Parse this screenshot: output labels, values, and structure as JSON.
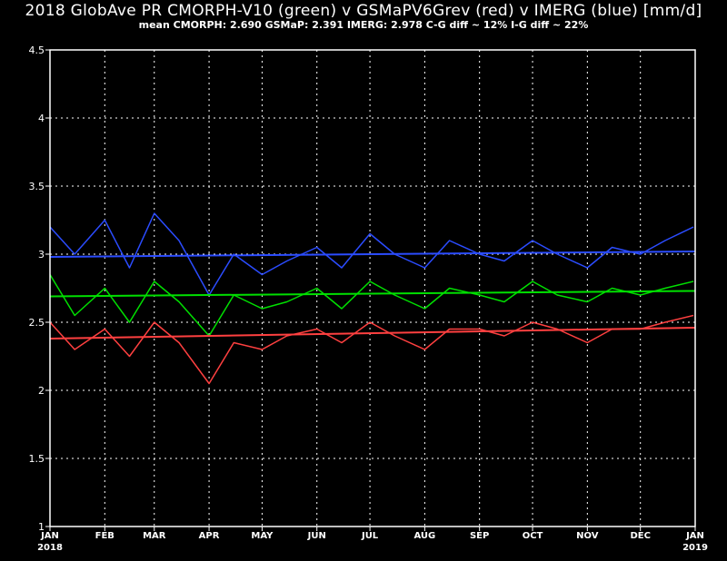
{
  "chart_data": {
    "type": "line",
    "title": "2018 GlobAve PR CMORPH-V10 (green) v GSMaPV6Grev (red) v IMERG (blue) [mm/d]",
    "subtitle": "mean CMORPH: 2.690 GSMaP: 2.391 IMERG: 2.978 C-G diff ~ 12% I-G diff ~ 22%",
    "ylim": [
      1,
      4.5
    ],
    "yticks": [
      "1",
      "1.5",
      "2",
      "2.5",
      "3",
      "3.5",
      "4",
      "4.5"
    ],
    "xlim": [
      "2018-01-01",
      "2019-01-01"
    ],
    "xticks": [
      {
        "date": "2018-01-01",
        "label": "JAN",
        "year": "2018"
      },
      {
        "date": "2018-02-01",
        "label": "FEB"
      },
      {
        "date": "2018-03-01",
        "label": "MAR"
      },
      {
        "date": "2018-04-01",
        "label": "APR"
      },
      {
        "date": "2018-05-01",
        "label": "MAY"
      },
      {
        "date": "2018-06-01",
        "label": "JUN"
      },
      {
        "date": "2018-07-01",
        "label": "JUL"
      },
      {
        "date": "2018-08-01",
        "label": "AUG"
      },
      {
        "date": "2018-09-01",
        "label": "SEP"
      },
      {
        "date": "2018-10-01",
        "label": "OCT"
      },
      {
        "date": "2018-11-01",
        "label": "NOV"
      },
      {
        "date": "2018-12-01",
        "label": "DEC"
      },
      {
        "date": "2019-01-01",
        "label": "JAN",
        "year": "2019"
      }
    ],
    "grid": true,
    "series": [
      {
        "color": "#2b4cff",
        "x": [
          "2018-01-01",
          "2018-01-15",
          "2018-02-01",
          "2018-02-15",
          "2018-03-01",
          "2018-03-15",
          "2018-04-01",
          "2018-04-15",
          "2018-05-01",
          "2018-05-15",
          "2018-06-01",
          "2018-06-15",
          "2018-07-01",
          "2018-07-15",
          "2018-08-01",
          "2018-08-15",
          "2018-09-01",
          "2018-09-15",
          "2018-10-01",
          "2018-10-15",
          "2018-11-01",
          "2018-11-15",
          "2018-12-01",
          "2018-12-15",
          "2018-12-31"
        ],
        "values": [
          3.2,
          3.0,
          3.25,
          2.9,
          3.3,
          3.1,
          2.7,
          3.0,
          2.85,
          2.95,
          3.05,
          2.9,
          3.15,
          3.0,
          2.9,
          3.1,
          3.0,
          2.95,
          3.1,
          3.0,
          2.9,
          3.05,
          3.0,
          3.1,
          3.2
        ],
        "trend": [
          2.98,
          3.02
        ]
      },
      {
        "color": "#00e000",
        "x": [
          "2018-01-01",
          "2018-01-15",
          "2018-02-01",
          "2018-02-15",
          "2018-03-01",
          "2018-03-15",
          "2018-04-01",
          "2018-04-15",
          "2018-05-01",
          "2018-05-15",
          "2018-06-01",
          "2018-06-15",
          "2018-07-01",
          "2018-07-15",
          "2018-08-01",
          "2018-08-15",
          "2018-09-01",
          "2018-09-15",
          "2018-10-01",
          "2018-10-15",
          "2018-11-01",
          "2018-11-15",
          "2018-12-01",
          "2018-12-15",
          "2018-12-31"
        ],
        "values": [
          2.85,
          2.55,
          2.75,
          2.5,
          2.8,
          2.65,
          2.4,
          2.7,
          2.6,
          2.65,
          2.75,
          2.6,
          2.8,
          2.7,
          2.6,
          2.75,
          2.7,
          2.65,
          2.8,
          2.7,
          2.65,
          2.75,
          2.7,
          2.75,
          2.8
        ],
        "trend": [
          2.69,
          2.73
        ]
      },
      {
        "color": "#ff4040",
        "x": [
          "2018-01-01",
          "2018-01-15",
          "2018-02-01",
          "2018-02-15",
          "2018-03-01",
          "2018-03-15",
          "2018-04-01",
          "2018-04-15",
          "2018-05-01",
          "2018-05-15",
          "2018-06-01",
          "2018-06-15",
          "2018-07-01",
          "2018-07-15",
          "2018-08-01",
          "2018-08-15",
          "2018-09-01",
          "2018-09-15",
          "2018-10-01",
          "2018-10-15",
          "2018-11-01",
          "2018-11-15",
          "2018-12-01",
          "2018-12-15",
          "2018-12-31"
        ],
        "values": [
          2.5,
          2.3,
          2.45,
          2.25,
          2.5,
          2.35,
          2.05,
          2.35,
          2.3,
          2.4,
          2.45,
          2.35,
          2.5,
          2.4,
          2.3,
          2.45,
          2.45,
          2.4,
          2.5,
          2.45,
          2.35,
          2.45,
          2.45,
          2.5,
          2.55
        ],
        "trend": [
          2.38,
          2.46
        ]
      }
    ]
  }
}
